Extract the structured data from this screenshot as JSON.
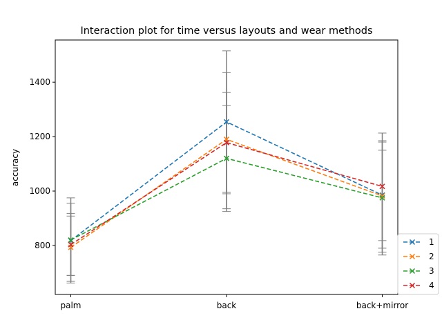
{
  "chart_data": {
    "type": "line",
    "title": "Interaction plot for time versus layouts and wear methods",
    "xlabel": "",
    "ylabel": "accuracy",
    "categories": [
      "palm",
      "back",
      "back+mirror"
    ],
    "ylim": [
      620,
      1555
    ],
    "yticks": [
      800,
      1000,
      1200,
      1400
    ],
    "grid": false,
    "legend_position": "bottom-right outside",
    "errorbar_color": "#808080",
    "series": [
      {
        "name": "1",
        "color": "#1f77b4",
        "values": [
          818,
          1254,
          985
        ],
        "err_low": [
          662,
          995,
          775
        ],
        "err_high": [
          975,
          1515,
          1213
        ]
      },
      {
        "name": "2",
        "color": "#ff7f0e",
        "values": [
          793,
          1190,
          982
        ],
        "err_low": [
          668,
          935,
          790
        ],
        "err_high": [
          918,
          1435,
          1185
        ]
      },
      {
        "name": "3",
        "color": "#2ca02c",
        "values": [
          820,
          1120,
          975
        ],
        "err_low": [
          690,
          925,
          765
        ],
        "err_high": [
          955,
          1315,
          1180
        ]
      },
      {
        "name": "4",
        "color": "#d62728",
        "values": [
          803,
          1178,
          1017
        ],
        "err_low": [
          690,
          990,
          818
        ],
        "err_high": [
          908,
          1362,
          1150
        ]
      }
    ]
  }
}
